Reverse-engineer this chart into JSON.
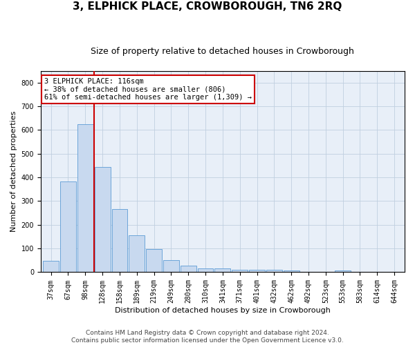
{
  "title": "3, ELPHICK PLACE, CROWBOROUGH, TN6 2RQ",
  "subtitle": "Size of property relative to detached houses in Crowborough",
  "xlabel": "Distribution of detached houses by size in Crowborough",
  "ylabel": "Number of detached properties",
  "categories": [
    "37sqm",
    "67sqm",
    "98sqm",
    "128sqm",
    "158sqm",
    "189sqm",
    "219sqm",
    "249sqm",
    "280sqm",
    "310sqm",
    "341sqm",
    "371sqm",
    "401sqm",
    "432sqm",
    "462sqm",
    "492sqm",
    "523sqm",
    "553sqm",
    "583sqm",
    "614sqm",
    "644sqm"
  ],
  "values": [
    47,
    383,
    625,
    443,
    267,
    155,
    97,
    52,
    28,
    15,
    15,
    10,
    10,
    10,
    8,
    0,
    0,
    7,
    0,
    0,
    0
  ],
  "bar_color": "#c8d9ef",
  "bar_edge_color": "#5b9bd5",
  "vline_x": 2.5,
  "vline_color": "#cc0000",
  "annotation_text": "3 ELPHICK PLACE: 116sqm\n← 38% of detached houses are smaller (806)\n61% of semi-detached houses are larger (1,309) →",
  "annotation_box_color": "#ffffff",
  "annotation_box_edge": "#cc0000",
  "ylim": [
    0,
    850
  ],
  "yticks": [
    0,
    100,
    200,
    300,
    400,
    500,
    600,
    700,
    800
  ],
  "grid_color": "#c0cfe0",
  "background_color": "#e8eff8",
  "footer_line1": "Contains HM Land Registry data © Crown copyright and database right 2024.",
  "footer_line2": "Contains public sector information licensed under the Open Government Licence v3.0.",
  "title_fontsize": 11,
  "subtitle_fontsize": 9,
  "axis_fontsize": 8,
  "tick_fontsize": 7,
  "annotation_fontsize": 7.5,
  "footer_fontsize": 6.5
}
